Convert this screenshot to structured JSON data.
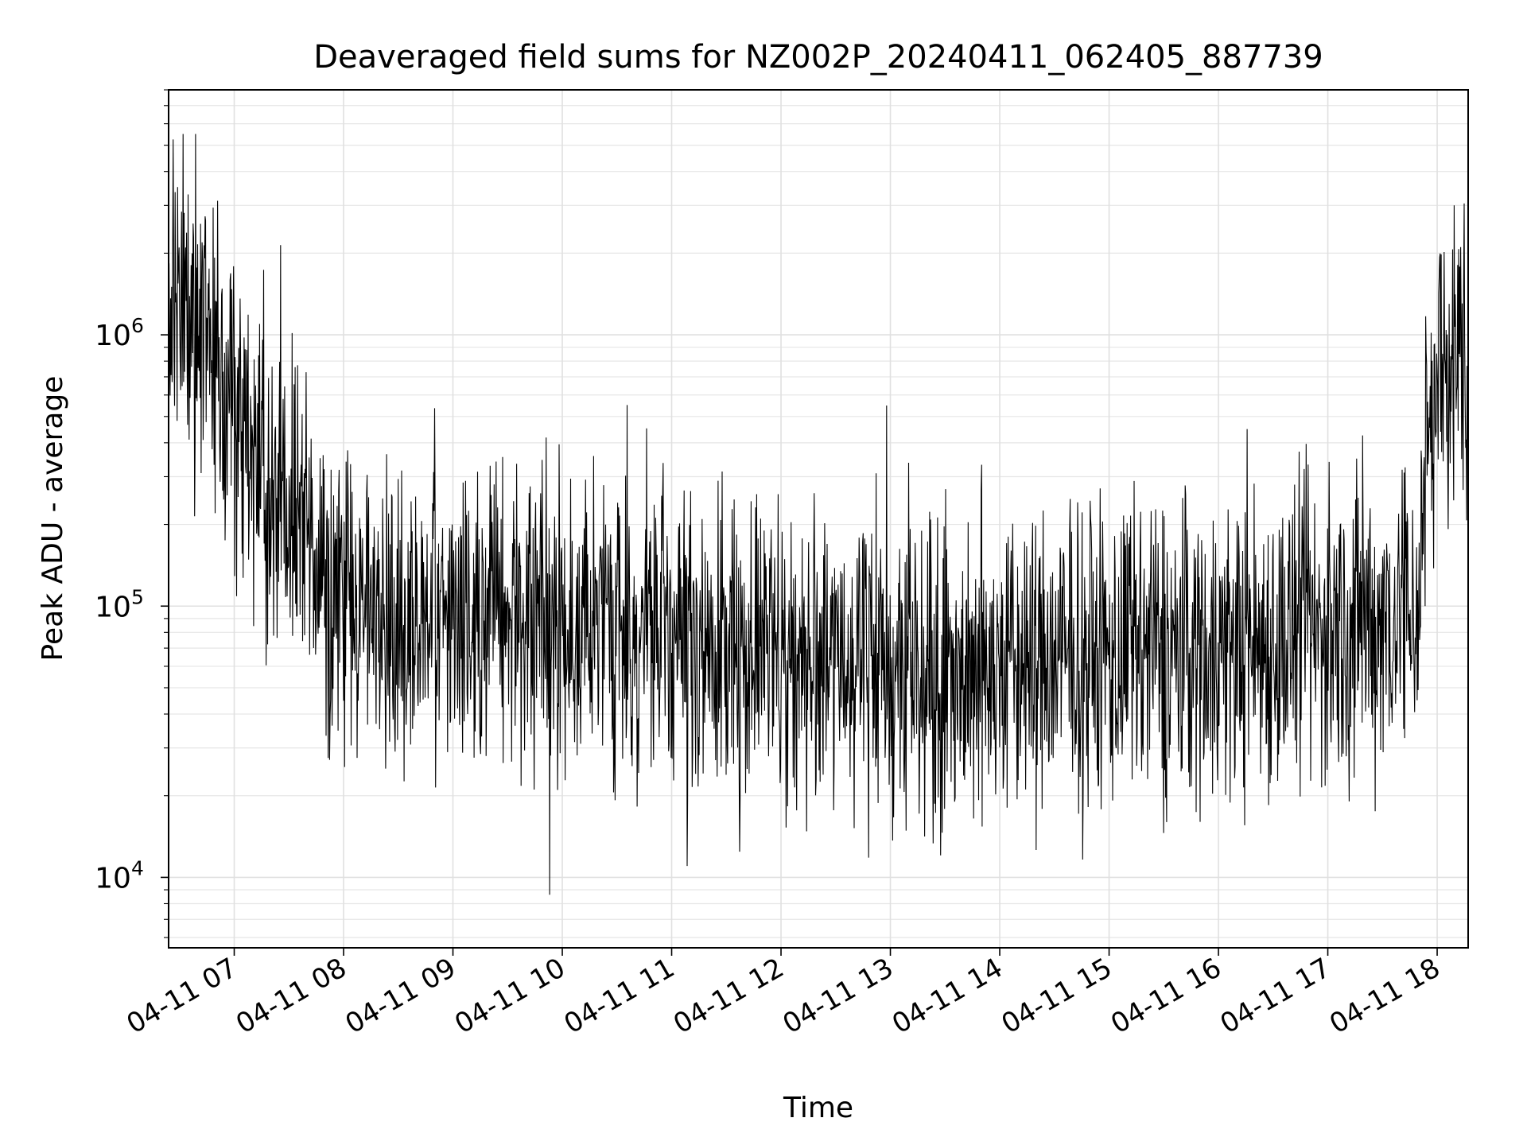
{
  "chart_data": {
    "type": "line",
    "title": "Deaveraged field sums for NZ002P_20240411_062405_887739",
    "xlabel": "Time",
    "ylabel": "Peak ADU - average",
    "yscale": "log",
    "xlim": [
      "2024-04-11 06:24",
      "2024-04-11 18:17"
    ],
    "ylim": [
      5500,
      8000000
    ],
    "grid": true,
    "line_color": "#000000",
    "x_ticks": [
      "2024-04-11 07:00",
      "2024-04-11 08:00",
      "2024-04-11 09:00",
      "2024-04-11 10:00",
      "2024-04-11 11:00",
      "2024-04-11 12:00",
      "2024-04-11 13:00",
      "2024-04-11 14:00",
      "2024-04-11 15:00",
      "2024-04-11 16:00",
      "2024-04-11 17:00",
      "2024-04-11 18:00"
    ],
    "x_tick_labels": [
      "04-11 07",
      "04-11 08",
      "04-11 09",
      "04-11 10",
      "04-11 11",
      "04-11 12",
      "04-11 13",
      "04-11 14",
      "04-11 15",
      "04-11 16",
      "04-11 17",
      "04-11 18"
    ],
    "y_ticks": [
      10000,
      100000,
      1000000
    ],
    "y_tick_labels": [
      {
        "base": "10",
        "exp": "4"
      },
      {
        "base": "10",
        "exp": "5"
      },
      {
        "base": "10",
        "exp": "6"
      }
    ],
    "series": [
      {
        "values": [
          [
            "2024-04-11 06:24",
            1200000
          ],
          [
            "2024-04-11 06:30",
            1500000
          ],
          [
            "2024-04-11 06:38",
            1300000
          ],
          [
            "2024-04-11 06:45",
            1100000
          ],
          [
            "2024-04-11 06:52",
            700000
          ],
          [
            "2024-04-11 07:00",
            500000
          ],
          [
            "2024-04-11 07:15",
            300000
          ],
          [
            "2024-04-11 07:30",
            220000
          ],
          [
            "2024-04-11 07:45",
            150000
          ],
          [
            "2024-04-11 08:00",
            110000
          ],
          [
            "2024-04-11 08:30",
            90000
          ],
          [
            "2024-04-11 09:00",
            85000
          ],
          [
            "2024-04-11 09:30",
            95000
          ],
          [
            "2024-04-11 10:00",
            90000
          ],
          [
            "2024-04-11 10:30",
            80000
          ],
          [
            "2024-04-11 11:00",
            75000
          ],
          [
            "2024-04-11 11:30",
            70000
          ],
          [
            "2024-04-11 12:00",
            68000
          ],
          [
            "2024-04-11 12:30",
            65000
          ],
          [
            "2024-04-11 13:00",
            62000
          ],
          [
            "2024-04-11 13:30",
            60000
          ],
          [
            "2024-04-11 14:00",
            60000
          ],
          [
            "2024-04-11 14:30",
            62000
          ],
          [
            "2024-04-11 15:00",
            65000
          ],
          [
            "2024-04-11 15:30",
            68000
          ],
          [
            "2024-04-11 16:00",
            70000
          ],
          [
            "2024-04-11 16:30",
            75000
          ],
          [
            "2024-04-11 17:00",
            80000
          ],
          [
            "2024-04-11 17:30",
            90000
          ],
          [
            "2024-04-11 17:50",
            100000
          ],
          [
            "2024-04-11 17:55",
            500000
          ],
          [
            "2024-04-11 18:05",
            800000
          ],
          [
            "2024-04-11 18:17",
            900000
          ]
        ],
        "noise_spread_decades": 0.85,
        "approx_max": 5500000,
        "approx_min": 7200
      }
    ]
  }
}
